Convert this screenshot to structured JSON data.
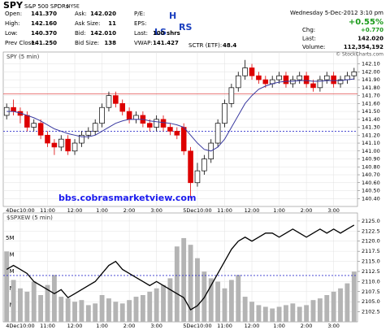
{
  "header": {
    "title": "SPY",
    "subtitle": "S&P 500 SPDRs",
    "exchange": "NYSE",
    "columns": [
      [
        {
          "label": "Open:",
          "value": "141.370"
        },
        {
          "label": "High:",
          "value": "142.160"
        },
        {
          "label": "Low:",
          "value": "140.370"
        },
        {
          "label": "Prev Close:",
          "value": "141.250"
        }
      ],
      [
        {
          "label": "Ask:",
          "value": "142.020"
        },
        {
          "label": "Ask Size:",
          "value": "11"
        },
        {
          "label": "Bid:",
          "value": "142.010"
        },
        {
          "label": "Bid Size:",
          "value": "138"
        }
      ],
      [
        {
          "label": "P/E:"
        },
        {
          "label": "EPS:"
        },
        {
          "label": "Last:",
          "value": "100 shrs"
        },
        {
          "label": "VWAP:",
          "value": "141.427"
        }
      ]
    ],
    "sctr": {
      "label": "SCTR (ETF):",
      "value": "48.4"
    },
    "date": "Wednesday  5-Dec-2012  3:10 pm",
    "change_pct": "+0.55%",
    "right": [
      {
        "label": "Chg:",
        "value": "+0.770"
      },
      {
        "label": "Last:",
        "value": "142.020"
      },
      {
        "label": "Volume:",
        "value": "112,354,192"
      }
    ],
    "copyright": "© StockCharts.com",
    "annotations": [
      "LS",
      "H",
      "RS"
    ]
  },
  "chart_data": [
    {
      "type": "candlestick",
      "title": "SPY (5 min)",
      "categories": [
        null,
        null,
        "4Dec10:00",
        null,
        null,
        null,
        "11:00",
        null,
        null,
        null,
        "12:00",
        null,
        null,
        null,
        "1:00",
        null,
        null,
        null,
        "2:00",
        null,
        null,
        null,
        "3:00",
        null,
        null,
        null,
        null,
        null,
        "5Dec10:00",
        null,
        null,
        null,
        "11:00",
        null,
        null,
        null,
        "12:00",
        null,
        null,
        null,
        "1:00",
        null,
        null,
        null,
        "2:00",
        null,
        null,
        null,
        "3:00",
        null,
        null,
        null
      ],
      "open": [
        141.45,
        141.55,
        141.5,
        141.45,
        141.3,
        141.35,
        141.2,
        141.1,
        141.05,
        141.15,
        141,
        141.1,
        141.2,
        141.25,
        141.35,
        141.55,
        141.7,
        141.6,
        141.5,
        141.4,
        141.45,
        141.35,
        141.3,
        141.4,
        141.3,
        141.25,
        141.3,
        141,
        140.6,
        140.75,
        140.9,
        141.1,
        141.35,
        141.6,
        141.8,
        141.95,
        142.05,
        141.95,
        141.9,
        141.85,
        141.9,
        141.95,
        141.85,
        141.9,
        141.95,
        141.85,
        141.8,
        141.9,
        141.95,
        141.85,
        141.9,
        141.95
      ],
      "high": [
        141.6,
        141.65,
        141.55,
        141.5,
        141.4,
        141.4,
        141.25,
        141.15,
        141.2,
        141.2,
        141.15,
        141.25,
        141.3,
        141.4,
        141.6,
        141.75,
        141.75,
        141.65,
        141.55,
        141.5,
        141.5,
        141.4,
        141.45,
        141.45,
        141.35,
        141.3,
        141.35,
        141.05,
        140.85,
        140.95,
        141.15,
        141.4,
        141.65,
        141.85,
        142,
        142.15,
        142.1,
        142,
        141.95,
        141.95,
        142,
        142,
        141.95,
        142,
        142,
        141.9,
        141.95,
        142,
        142,
        141.95,
        142,
        142.05
      ],
      "low": [
        141.4,
        141.45,
        141.35,
        141.25,
        141.25,
        141.15,
        141.05,
        140.95,
        141,
        140.95,
        140.95,
        141.05,
        141.15,
        141.2,
        141.3,
        141.5,
        141.55,
        141.45,
        141.35,
        141.35,
        141.3,
        141.25,
        141.25,
        141.25,
        141.2,
        141.15,
        140.95,
        140.4,
        140.55,
        140.7,
        140.85,
        141.05,
        141.3,
        141.55,
        141.75,
        141.9,
        141.9,
        141.85,
        141.8,
        141.8,
        141.85,
        141.8,
        141.8,
        141.85,
        141.8,
        141.75,
        141.75,
        141.85,
        141.8,
        141.8,
        141.85,
        141.9
      ],
      "close": [
        141.55,
        141.5,
        141.45,
        141.3,
        141.35,
        141.2,
        141.1,
        141.05,
        141.15,
        141,
        141.1,
        141.2,
        141.25,
        141.35,
        141.55,
        141.7,
        141.6,
        141.5,
        141.4,
        141.45,
        141.35,
        141.3,
        141.4,
        141.3,
        141.25,
        141.2,
        141,
        140.6,
        140.75,
        140.9,
        141.1,
        141.35,
        141.6,
        141.8,
        141.95,
        142.05,
        141.95,
        141.9,
        141.85,
        141.9,
        141.95,
        141.85,
        141.9,
        141.95,
        141.85,
        141.8,
        141.9,
        141.95,
        141.85,
        141.9,
        141.95,
        142
      ],
      "up_color": "#000000",
      "down_color": "#dd0000",
      "overlays": [
        {
          "color": "#3a3aa0",
          "values": [
            141.5,
            141.5,
            141.48,
            141.45,
            141.42,
            141.38,
            141.33,
            141.28,
            141.25,
            141.22,
            141.2,
            141.18,
            141.18,
            141.2,
            141.25,
            141.3,
            141.35,
            141.38,
            141.4,
            141.4,
            141.4,
            141.38,
            141.37,
            141.36,
            141.35,
            141.33,
            141.3,
            141.2,
            141.1,
            141.02,
            141,
            141.05,
            141.15,
            141.3,
            141.45,
            141.6,
            141.7,
            141.78,
            141.82,
            141.85,
            141.87,
            141.88,
            141.88,
            141.89,
            141.89,
            141.88,
            141.88,
            141.89,
            141.89,
            141.89,
            141.9,
            141.91
          ]
        }
      ],
      "lines": [
        {
          "value": 141.72,
          "color": "#e05050"
        },
        {
          "value": 141.25,
          "color": "#3333cc",
          "dash": true
        }
      ],
      "ylim": [
        140.3,
        142.25
      ],
      "yticks": [
        {
          "value": 140.4,
          "label": "140.40"
        },
        {
          "value": 140.5,
          "label": "140.50"
        },
        {
          "value": 140.6,
          "label": "140.60"
        },
        {
          "value": 140.7,
          "label": "140.70"
        },
        {
          "value": 140.8,
          "label": "140.80"
        },
        {
          "value": 140.9,
          "label": "140.90"
        },
        {
          "value": 141,
          "label": "141.00"
        },
        {
          "value": 141.1,
          "label": "141.10"
        },
        {
          "value": 141.2,
          "label": "141.20"
        },
        {
          "value": 141.3,
          "label": "141.30"
        },
        {
          "value": 141.4,
          "label": "141.40"
        },
        {
          "value": 141.5,
          "label": "141.50"
        },
        {
          "value": 141.6,
          "label": "141.60"
        },
        {
          "value": 141.7,
          "label": "141.70"
        },
        {
          "value": 141.8,
          "label": "141.80"
        },
        {
          "value": 141.9,
          "label": "141.90"
        },
        {
          "value": 142,
          "label": "142.00"
        },
        {
          "value": 142.1,
          "label": "142.10"
        }
      ],
      "grid": true,
      "watermark": "bbs.cobrasmarketview.com"
    },
    {
      "type": "combo",
      "title": "$SPXEW (5 min)",
      "categories": [
        null,
        null,
        "4Dec10:00",
        null,
        null,
        null,
        "11:00",
        null,
        null,
        null,
        "12:00",
        null,
        null,
        null,
        "1:00",
        null,
        null,
        null,
        "2:00",
        null,
        null,
        null,
        "3:00",
        null,
        null,
        null,
        null,
        null,
        "5Dec10:00",
        null,
        null,
        null,
        "11:00",
        null,
        null,
        null,
        "12:00",
        null,
        null,
        null,
        "1:00",
        null,
        null,
        null,
        "2:00",
        null,
        null,
        null,
        "3:00",
        null,
        null,
        null
      ],
      "series": [
        {
          "color": "#000000",
          "values": [
            2113,
            2114,
            2113,
            2112,
            2110,
            2109,
            2108,
            2107,
            2108,
            2106,
            2107,
            2108,
            2109,
            2110,
            2112,
            2114,
            2115,
            2113,
            2112,
            2111,
            2110,
            2109,
            2110,
            2109,
            2108,
            2107,
            2106,
            2103,
            2104,
            2106,
            2109,
            2112,
            2115,
            2118,
            2120,
            2121,
            2120,
            2121,
            2122,
            2122,
            2121,
            2122,
            2123,
            2122,
            2121,
            2122,
            2123,
            2122,
            2123,
            2122,
            2123,
            2124
          ]
        },
        {
          "color": "#b4b4b4",
          "axis": "y2",
          "values": [
            4200000,
            2500000,
            2000000,
            1800000,
            2400000,
            1600000,
            2200000,
            2800000,
            1500000,
            1400000,
            1200000,
            1300000,
            1000000,
            1100000,
            1600000,
            1400000,
            1200000,
            1100000,
            1300000,
            1500000,
            1600000,
            1800000,
            2000000,
            2200000,
            2600000,
            4500000,
            5000000,
            4600000,
            3800000,
            3000000,
            2600000,
            2400000,
            2000000,
            2500000,
            2800000,
            1500000,
            1200000,
            1000000,
            900000,
            800000,
            900000,
            1000000,
            1100000,
            900000,
            1000000,
            1300000,
            1400000,
            1600000,
            1800000,
            2000000,
            2300000,
            3000000
          ]
        }
      ],
      "lines": [
        {
          "value": 2111.5,
          "color": "#3333cc",
          "dash": true
        }
      ],
      "ylim": [
        2100,
        2127
      ],
      "yticks": [
        {
          "value": 2102.5,
          "label": "2102.5"
        },
        {
          "value": 2105,
          "label": "2105.0"
        },
        {
          "value": 2107.5,
          "label": "2107.5"
        },
        {
          "value": 2110,
          "label": "2110.0"
        },
        {
          "value": 2112.5,
          "label": "2112.5"
        },
        {
          "value": 2115,
          "label": "2115.0"
        },
        {
          "value": 2117.5,
          "label": "2117.5"
        },
        {
          "value": 2120,
          "label": "2120.0"
        },
        {
          "value": 2122.5,
          "label": "2122.5"
        },
        {
          "value": 2125,
          "label": "2125.0"
        }
      ],
      "y2lim": [
        0,
        6500000
      ],
      "y2ticks": [
        {
          "value": 1000000,
          "label": "1M"
        },
        {
          "value": 2000000,
          "label": "2M"
        },
        {
          "value": 3000000,
          "label": "3M"
        },
        {
          "value": 4000000,
          "label": "4M"
        },
        {
          "value": 5000000,
          "label": "5M"
        }
      ],
      "grid": true
    }
  ]
}
